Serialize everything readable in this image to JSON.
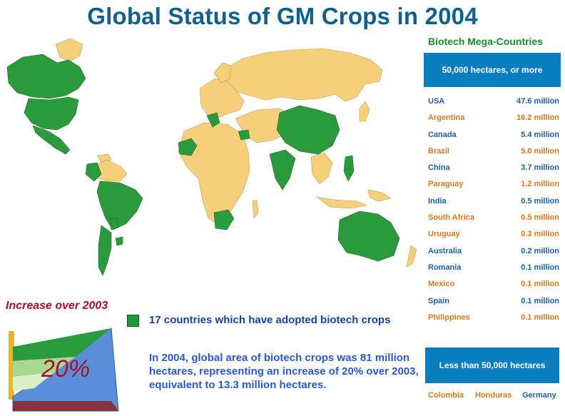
{
  "title": "Global Status of GM Crops in 2004",
  "colors": {
    "biotech_country": "#2b9a3c",
    "other_land": "#f7cf7a",
    "heading_blue": "#0f5f8f",
    "box_blue": "#0a7fc0"
  },
  "panel": {
    "title": "Biotech Mega-Countries",
    "large_label": "50,000 hectares, or more",
    "countries": [
      {
        "name": "USA",
        "value": "47.6 million"
      },
      {
        "name": "Argentina",
        "value": "16.2 million"
      },
      {
        "name": "Canada",
        "value": "5.4 million"
      },
      {
        "name": "Brazil",
        "value": "5.0 million"
      },
      {
        "name": "China",
        "value": "3.7 million"
      },
      {
        "name": "Paraguay",
        "value": "1.2 million"
      },
      {
        "name": "India",
        "value": "0.5 million"
      },
      {
        "name": "South Africa",
        "value": "0.5 million"
      },
      {
        "name": "Uruguay",
        "value": "0.3 million"
      },
      {
        "name": "Australia",
        "value": "0.2 million"
      },
      {
        "name": "Romania",
        "value": "0.1 million"
      },
      {
        "name": "Mexico",
        "value": "0.1 million"
      },
      {
        "name": "Spain",
        "value": "0.1 million"
      },
      {
        "name": "Philippines",
        "value": "0.1 million"
      }
    ],
    "small_label": "Less than 50,000 hectares",
    "small_countries": [
      "Colombia",
      "Honduras",
      "Germany"
    ]
  },
  "increase": {
    "title": "Increase over 2003",
    "value": "20%"
  },
  "legend": {
    "text": "17 countries which have adopted biotech crops"
  },
  "description": "In 2004, global area of biotech crops was 81 million hectares, representing an increase of 20% over 2003, equivalent to 13.3 million hectares."
}
